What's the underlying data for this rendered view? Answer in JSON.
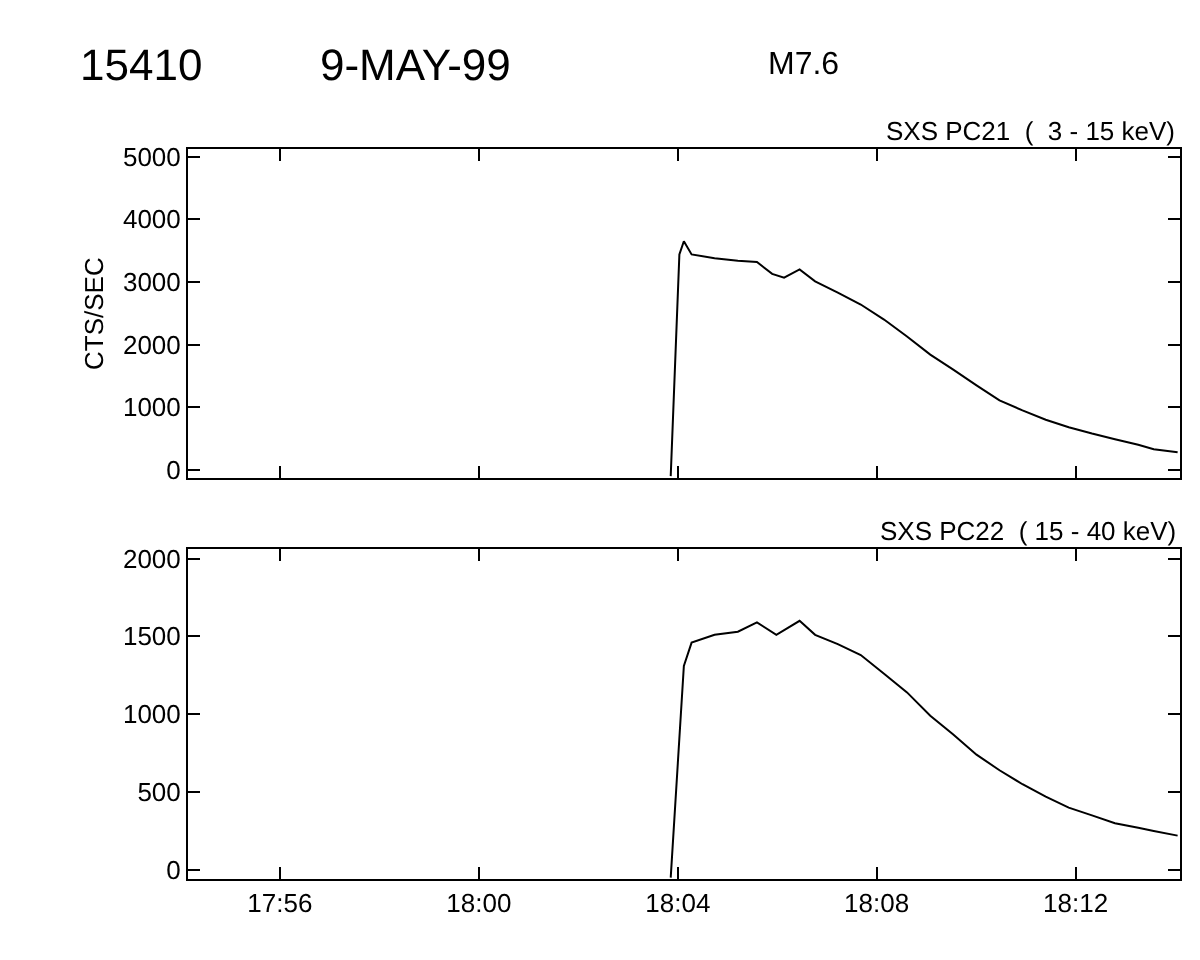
{
  "chart_data": [
    {
      "type": "line",
      "title": "SXS PC21  (  3 - 15 keV)",
      "ylabel": "CTS/SEC",
      "annotations": [
        "15410",
        "9-MAY-99",
        "M7.6"
      ],
      "series": [
        {
          "color": "#000000",
          "x": [
            18.0643,
            18.0672,
            18.0687,
            18.0713,
            18.079,
            18.0868,
            18.0932,
            18.0983,
            18.1023,
            18.1075,
            18.1127,
            18.1203,
            18.128,
            18.1358,
            18.1435,
            18.1513,
            18.159,
            18.1668,
            18.1745,
            18.1822,
            18.19,
            18.1977,
            18.2055,
            18.2132,
            18.221,
            18.2262,
            18.2342
          ],
          "values": [
            -100,
            3440,
            3650,
            3440,
            3380,
            3340,
            3320,
            3130,
            3070,
            3200,
            3010,
            2830,
            2640,
            2400,
            2130,
            1840,
            1600,
            1350,
            1110,
            950,
            800,
            680,
            580,
            490,
            400,
            330,
            280
          ]
        }
      ],
      "xlim": [
        17.9025,
        18.235
      ],
      "xticks": [
        {
          "value": 17.9333,
          "label": null
        },
        {
          "value": 18.0,
          "label": null
        },
        {
          "value": 18.0667,
          "label": null
        },
        {
          "value": 18.1333,
          "label": null
        },
        {
          "value": 18.2,
          "label": null
        }
      ],
      "ylim": [
        -130,
        5120
      ],
      "yticks": [
        0,
        1000,
        2000,
        3000,
        4000,
        5000
      ],
      "tick_labels": "y"
    },
    {
      "type": "line",
      "title": "SXS PC22  ( 15 - 40 keV)",
      "series": [
        {
          "color": "#000000",
          "x": [
            18.0643,
            18.0687,
            18.0713,
            18.079,
            18.0868,
            18.0932,
            18.0997,
            18.1075,
            18.1127,
            18.1203,
            18.128,
            18.1358,
            18.1435,
            18.1513,
            18.159,
            18.1668,
            18.1745,
            18.1822,
            18.19,
            18.1977,
            18.2055,
            18.2132,
            18.221,
            18.2262,
            18.2342
          ],
          "values": [
            -50,
            1310,
            1460,
            1510,
            1530,
            1590,
            1510,
            1600,
            1510,
            1450,
            1380,
            1260,
            1140,
            990,
            870,
            740,
            640,
            550,
            470,
            400,
            350,
            300,
            270,
            250,
            220
          ]
        }
      ],
      "xlim": [
        17.9025,
        18.235
      ],
      "xticks": [
        {
          "value": 17.9333,
          "label": "17:56"
        },
        {
          "value": 18.0,
          "label": "18:00"
        },
        {
          "value": 18.0667,
          "label": "18:04"
        },
        {
          "value": 18.1333,
          "label": "18:08"
        },
        {
          "value": 18.2,
          "label": "18:12"
        }
      ],
      "ylim": [
        -60,
        2060
      ],
      "yticks": [
        0,
        500,
        1000,
        1500,
        2000
      ]
    }
  ]
}
